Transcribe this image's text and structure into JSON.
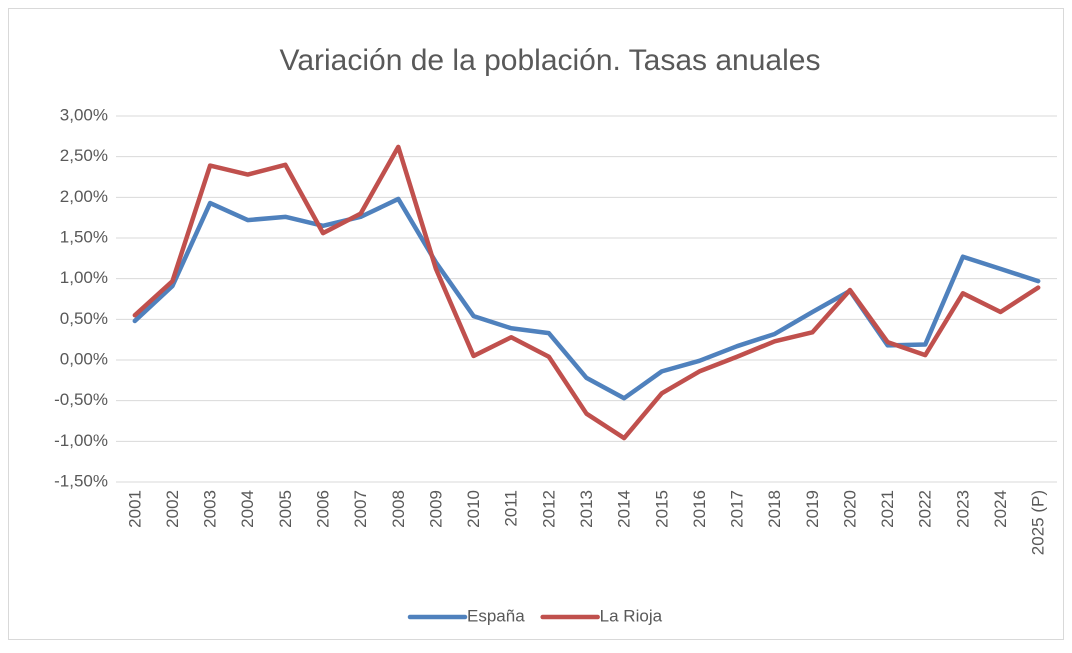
{
  "chart_data": {
    "type": "line",
    "title": "Variación de la población. Tasas anuales",
    "categories": [
      "2001",
      "2002",
      "2003",
      "2004",
      "2005",
      "2006",
      "2007",
      "2008",
      "2009",
      "2010",
      "2011",
      "2012",
      "2013",
      "2014",
      "2015",
      "2016",
      "2017",
      "2018",
      "2019",
      "2020",
      "2021",
      "2022",
      "2023",
      "2024",
      "2025 (P)"
    ],
    "series": [
      {
        "name": "España",
        "color": "#4f81bd",
        "values": [
          0.48,
          0.91,
          1.93,
          1.72,
          1.76,
          1.65,
          1.76,
          1.98,
          1.2,
          0.54,
          0.39,
          0.33,
          -0.22,
          -0.47,
          -0.14,
          -0.01,
          0.17,
          0.32,
          0.59,
          0.85,
          0.18,
          0.19,
          1.27,
          1.12,
          0.97
        ]
      },
      {
        "name": "La Rioja",
        "color": "#c0504d",
        "values": [
          0.55,
          0.97,
          2.39,
          2.28,
          2.4,
          1.56,
          1.8,
          2.62,
          1.12,
          0.05,
          0.28,
          0.04,
          -0.66,
          -0.96,
          -0.41,
          -0.14,
          0.04,
          0.23,
          0.34,
          0.86,
          0.22,
          0.06,
          0.82,
          0.59,
          0.89
        ]
      }
    ],
    "ylim": [
      -1.5,
      3
    ],
    "yticks": [
      {
        "value": -1.5,
        "label": "-1,50%"
      },
      {
        "value": -1,
        "label": "-1,00%"
      },
      {
        "value": -0.5,
        "label": "-0,50%"
      },
      {
        "value": 0,
        "label": "0,00%"
      },
      {
        "value": 0.5,
        "label": "0,50%"
      },
      {
        "value": 1,
        "label": "1,00%"
      },
      {
        "value": 1.5,
        "label": "1,50%"
      },
      {
        "value": 2,
        "label": "2,00%"
      },
      {
        "value": 2.5,
        "label": "2,50%"
      },
      {
        "value": 3,
        "label": "3,00%"
      }
    ],
    "grid": true,
    "legend": "bottom"
  }
}
